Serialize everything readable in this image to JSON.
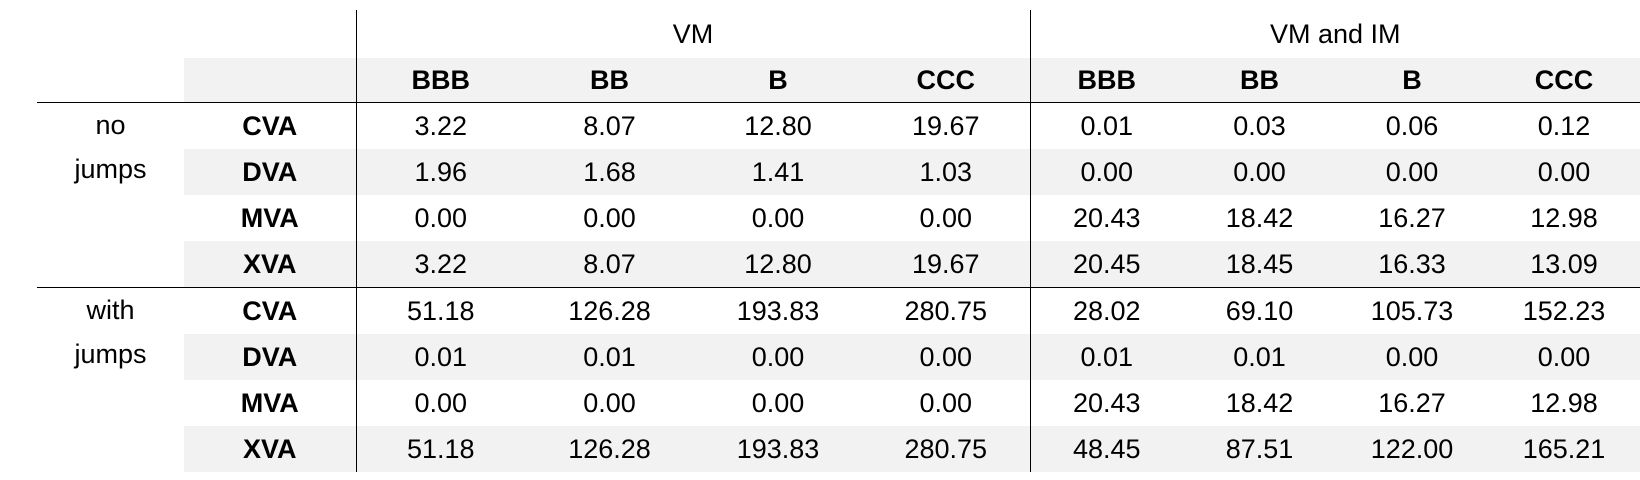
{
  "header": {
    "groups": [
      "VM",
      "VM and IM"
    ],
    "columns": [
      "BBB",
      "BB",
      "B",
      "CCC",
      "BBB",
      "BB",
      "B",
      "CCC"
    ]
  },
  "sections": [
    {
      "label": "no jumps",
      "rows": [
        {
          "label": "CVA",
          "values": [
            "3.22",
            "8.07",
            "12.80",
            "19.67",
            "0.01",
            "0.03",
            "0.06",
            "0.12"
          ]
        },
        {
          "label": "DVA",
          "values": [
            "1.96",
            "1.68",
            "1.41",
            "1.03",
            "0.00",
            "0.00",
            "0.00",
            "0.00"
          ]
        },
        {
          "label": "MVA",
          "values": [
            "0.00",
            "0.00",
            "0.00",
            "0.00",
            "20.43",
            "18.42",
            "16.27",
            "12.98"
          ]
        },
        {
          "label": "XVA",
          "values": [
            "3.22",
            "8.07",
            "12.80",
            "19.67",
            "20.45",
            "18.45",
            "16.33",
            "13.09"
          ]
        }
      ]
    },
    {
      "label": "with jumps",
      "rows": [
        {
          "label": "CVA",
          "values": [
            "51.18",
            "126.28",
            "193.83",
            "280.75",
            "28.02",
            "69.10",
            "105.73",
            "152.23"
          ]
        },
        {
          "label": "DVA",
          "values": [
            "0.01",
            "0.01",
            "0.00",
            "0.00",
            "0.01",
            "0.01",
            "0.00",
            "0.00"
          ]
        },
        {
          "label": "MVA",
          "values": [
            "0.00",
            "0.00",
            "0.00",
            "0.00",
            "20.43",
            "18.42",
            "16.27",
            "12.98"
          ]
        },
        {
          "label": "XVA",
          "values": [
            "51.18",
            "126.28",
            "193.83",
            "280.75",
            "48.45",
            "87.51",
            "122.00",
            "165.21"
          ]
        }
      ]
    }
  ]
}
